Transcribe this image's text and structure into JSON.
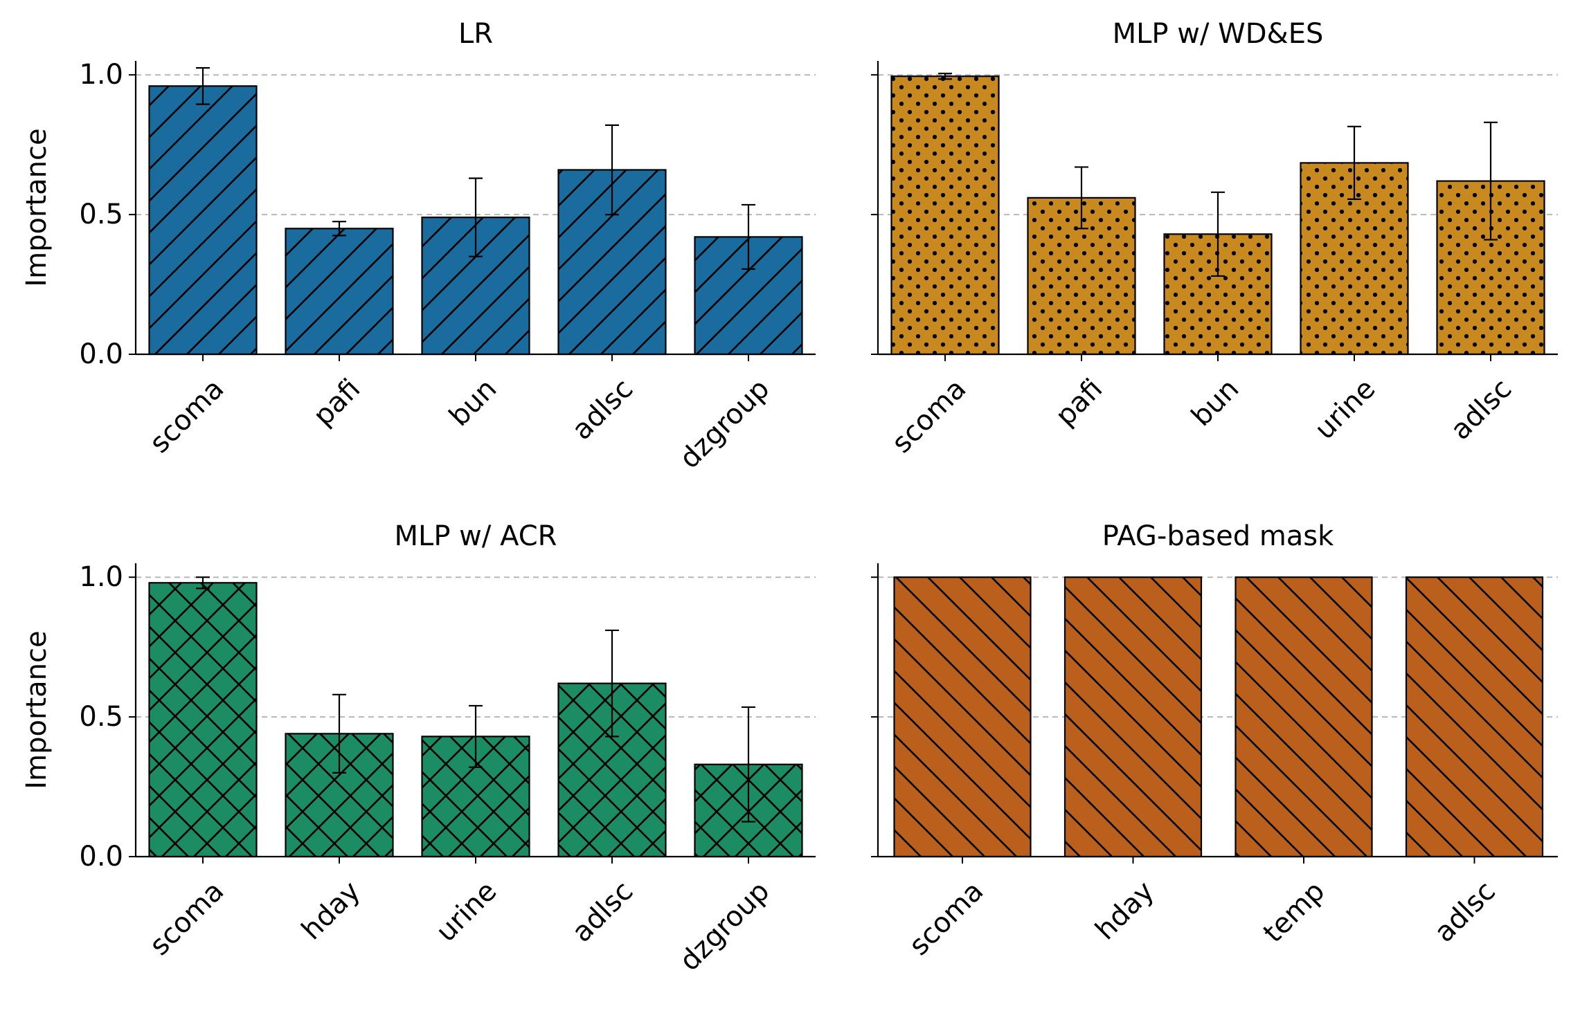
{
  "chart_data": [
    {
      "type": "bar",
      "title": "LR",
      "ylabel": "Importance",
      "xlabel": "",
      "ylim": [
        0,
        1.05
      ],
      "yticks": [
        "0.0",
        "0.5",
        "1.0"
      ],
      "grid": "horizontal dashed",
      "color": "#1a6b9e",
      "hatch": "diagonal-up",
      "categories": [
        "scoma",
        "pafi",
        "bun",
        "adlsc",
        "dzgroup"
      ],
      "values": [
        0.96,
        0.45,
        0.49,
        0.66,
        0.42
      ],
      "errors": [
        0.065,
        0.025,
        0.14,
        0.16,
        0.115
      ]
    },
    {
      "type": "bar",
      "title": "MLP w/ WD&ES",
      "ylabel": "",
      "xlabel": "",
      "ylim": [
        0,
        1.05
      ],
      "yticks": [
        "0.0",
        "0.5",
        "1.0"
      ],
      "grid": "horizontal dashed",
      "color": "#c8891e",
      "hatch": "dots",
      "categories": [
        "scoma",
        "pafi",
        "bun",
        "urine",
        "adlsc"
      ],
      "values": [
        0.995,
        0.56,
        0.43,
        0.685,
        0.62
      ],
      "errors": [
        0.01,
        0.11,
        0.15,
        0.13,
        0.21
      ]
    },
    {
      "type": "bar",
      "title": "MLP w/ ACR",
      "ylabel": "Importance",
      "xlabel": "",
      "ylim": [
        0,
        1.05
      ],
      "yticks": [
        "0.0",
        "0.5",
        "1.0"
      ],
      "grid": "horizontal dashed",
      "color": "#1c8c65",
      "hatch": "crosshatch",
      "categories": [
        "scoma",
        "hday",
        "urine",
        "adlsc",
        "dzgroup"
      ],
      "values": [
        0.98,
        0.44,
        0.43,
        0.62,
        0.33
      ],
      "errors": [
        0.02,
        0.14,
        0.11,
        0.19,
        0.205
      ]
    },
    {
      "type": "bar",
      "title": "PAG-based mask",
      "ylabel": "",
      "xlabel": "",
      "ylim": [
        0,
        1.05
      ],
      "yticks": [
        "0.0",
        "0.5",
        "1.0"
      ],
      "grid": "horizontal dashed",
      "color": "#ba601c",
      "hatch": "diagonal-down",
      "categories": [
        "scoma",
        "hday",
        "temp",
        "adlsc"
      ],
      "values": [
        1.0,
        1.0,
        1.0,
        1.0
      ],
      "errors": [
        0,
        0,
        0,
        0
      ]
    }
  ]
}
